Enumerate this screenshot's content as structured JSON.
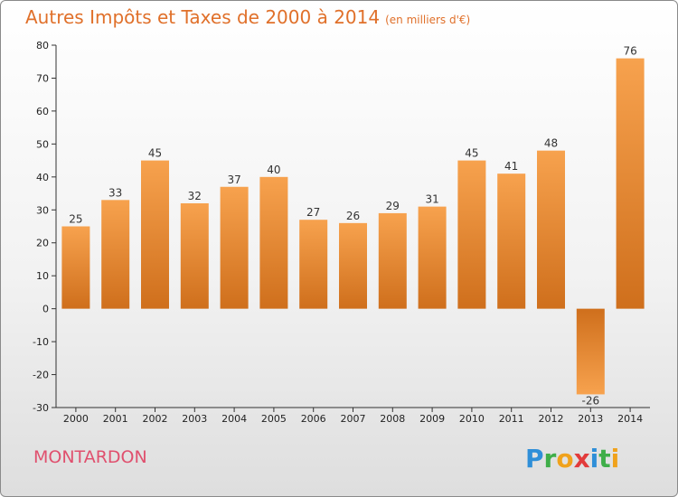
{
  "header": {
    "title": "Autres Impôts et Taxes de 2000 à 2014",
    "subtitle": "(en milliers d'€)"
  },
  "footer": {
    "commune": "MONTARDON",
    "logo": "Proxiti"
  },
  "colors": {
    "bar_light": "#f7a24e",
    "bar_dark": "#cf6f1c",
    "title": "#e0702a",
    "commune": "#e0506e"
  },
  "chart_data": {
    "type": "bar",
    "title": "Autres Impôts et Taxes de 2000 à 2014",
    "subtitle": "(en milliers d'€)",
    "categories": [
      "2000",
      "2001",
      "2002",
      "2003",
      "2004",
      "2005",
      "2006",
      "2007",
      "2008",
      "2009",
      "2010",
      "2011",
      "2012",
      "2013",
      "2014"
    ],
    "values": [
      25,
      33,
      45,
      32,
      37,
      40,
      27,
      26,
      29,
      31,
      45,
      41,
      48,
      -26,
      76
    ],
    "data_labels": [
      "25",
      "33",
      "45",
      "32",
      "37",
      "40",
      "27",
      "26",
      "29",
      "31",
      "45",
      "41",
      "48",
      "-26",
      "76"
    ],
    "ylim": [
      -30,
      80
    ],
    "yticks": [
      -30,
      -20,
      -10,
      0,
      10,
      20,
      30,
      40,
      50,
      60,
      70,
      80
    ],
    "ytick_labels": [
      "-30",
      "-20",
      "-10",
      "0",
      "10",
      "20",
      "30",
      "40",
      "50",
      "60",
      "70",
      "80"
    ],
    "xlabel": "",
    "ylabel": "",
    "grid": false,
    "legend": "none"
  }
}
